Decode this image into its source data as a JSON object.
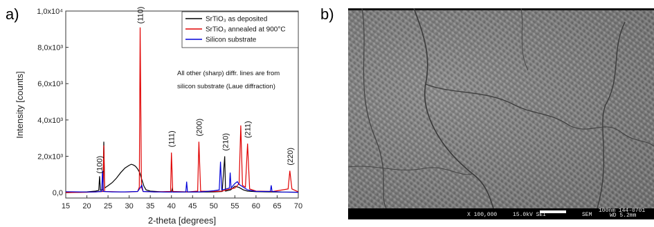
{
  "panels": {
    "a_label": "a)",
    "b_label": "b)"
  },
  "chart_data": {
    "type": "line",
    "xlabel": "2-theta [degrees]",
    "ylabel": "Intensity [counts]",
    "xlim": [
      15,
      70
    ],
    "ylim": [
      -300,
      10000
    ],
    "x_ticks": [
      "15",
      "20",
      "25",
      "30",
      "35",
      "40",
      "45",
      "50",
      "55",
      "60",
      "65",
      "70"
    ],
    "y_ticks": [
      "0,0",
      "2,0x10³",
      "4,0x10³",
      "6,0x10³",
      "8,0x10³",
      "1,0x10⁴"
    ],
    "y_tick_values": [
      0,
      2000,
      4000,
      6000,
      8000,
      10000
    ],
    "legend_position": "top-right",
    "series": [
      {
        "name": "SrTiO₃ as deposited",
        "color": "#000000",
        "points": [
          [
            15,
            0
          ],
          [
            18,
            20
          ],
          [
            20,
            40
          ],
          [
            22,
            80
          ],
          [
            22.8,
            120
          ],
          [
            23.0,
            900
          ],
          [
            23.2,
            120
          ],
          [
            23.8,
            180
          ],
          [
            24.0,
            2800
          ],
          [
            24.2,
            250
          ],
          [
            25,
            380
          ],
          [
            26,
            550
          ],
          [
            27,
            800
          ],
          [
            28,
            1100
          ],
          [
            29,
            1350
          ],
          [
            30,
            1500
          ],
          [
            30.5,
            1560
          ],
          [
            31,
            1520
          ],
          [
            31.5,
            1450
          ],
          [
            32,
            1300
          ],
          [
            32.5,
            1100
          ],
          [
            33,
            700
          ],
          [
            33.5,
            350
          ],
          [
            34,
            150
          ],
          [
            35,
            80
          ],
          [
            38,
            40
          ],
          [
            40,
            30
          ],
          [
            40.2,
            200
          ],
          [
            40.4,
            30
          ],
          [
            43,
            30
          ],
          [
            45,
            30
          ],
          [
            50,
            40
          ],
          [
            52,
            60
          ],
          [
            52.6,
            2000
          ],
          [
            52.8,
            80
          ],
          [
            54,
            150
          ],
          [
            55,
            350
          ],
          [
            56,
            280
          ],
          [
            57,
            150
          ],
          [
            58,
            80
          ],
          [
            60,
            50
          ],
          [
            65,
            30
          ],
          [
            70,
            20
          ]
        ]
      },
      {
        "name": "SrTiO₃ annealed at 900°C",
        "color": "#e00000",
        "points": [
          [
            15,
            0
          ],
          [
            20,
            20
          ],
          [
            22,
            40
          ],
          [
            23.8,
            60
          ],
          [
            24.0,
            2600
          ],
          [
            24.2,
            60
          ],
          [
            28,
            40
          ],
          [
            30,
            40
          ],
          [
            32,
            60
          ],
          [
            32.4,
            300
          ],
          [
            32.6,
            9100
          ],
          [
            32.9,
            300
          ],
          [
            33.3,
            60
          ],
          [
            36,
            40
          ],
          [
            39.8,
            60
          ],
          [
            40.0,
            2200
          ],
          [
            40.3,
            60
          ],
          [
            44,
            40
          ],
          [
            46.2,
            80
          ],
          [
            46.5,
            2800
          ],
          [
            46.9,
            80
          ],
          [
            50,
            60
          ],
          [
            52,
            80
          ],
          [
            53,
            150
          ],
          [
            55,
            250
          ],
          [
            56.0,
            500
          ],
          [
            56.4,
            3700
          ],
          [
            56.8,
            400
          ],
          [
            57.5,
            300
          ],
          [
            58.0,
            2700
          ],
          [
            58.5,
            200
          ],
          [
            60,
            80
          ],
          [
            64,
            60
          ],
          [
            67.6,
            200
          ],
          [
            68,
            1200
          ],
          [
            68.5,
            200
          ],
          [
            70,
            40
          ]
        ]
      },
      {
        "name": "Silicon substrate",
        "color": "#0000d8",
        "points": [
          [
            15,
            50
          ],
          [
            18,
            40
          ],
          [
            20,
            30
          ],
          [
            22,
            40
          ],
          [
            23.5,
            60
          ],
          [
            23.7,
            1200
          ],
          [
            23.9,
            60
          ],
          [
            26,
            40
          ],
          [
            29,
            40
          ],
          [
            32,
            60
          ],
          [
            33.0,
            400
          ],
          [
            33.3,
            60
          ],
          [
            36,
            40
          ],
          [
            40,
            30
          ],
          [
            43.4,
            40
          ],
          [
            43.6,
            600
          ],
          [
            43.8,
            40
          ],
          [
            47,
            40
          ],
          [
            50,
            100
          ],
          [
            51.3,
            150
          ],
          [
            51.6,
            1700
          ],
          [
            51.9,
            150
          ],
          [
            53,
            200
          ],
          [
            53.7,
            250
          ],
          [
            53.9,
            1100
          ],
          [
            54.1,
            250
          ],
          [
            55,
            500
          ],
          [
            55.6,
            600
          ],
          [
            56,
            450
          ],
          [
            57,
            300
          ],
          [
            58,
            150
          ],
          [
            60,
            60
          ],
          [
            63.4,
            60
          ],
          [
            63.6,
            400
          ],
          [
            63.8,
            60
          ],
          [
            66,
            30
          ],
          [
            70,
            20
          ]
        ]
      }
    ],
    "peak_labels": [
      {
        "text": "(100)",
        "x": 22.9,
        "y": 1050
      },
      {
        "text": "(110)",
        "x": 32.6,
        "y": 9300
      },
      {
        "text": "(111)",
        "x": 40.0,
        "y": 2500
      },
      {
        "text": "(200)",
        "x": 46.5,
        "y": 3100
      },
      {
        "text": "(210)",
        "x": 52.7,
        "y": 2300
      },
      {
        "text": "(211)",
        "x": 58.0,
        "y": 3000
      },
      {
        "text": "(220)",
        "x": 68.0,
        "y": 1500
      }
    ],
    "annotation": [
      "All other (sharp) diffr. lines are from",
      "silicon substrate (Laue diffraction)"
    ]
  },
  "sem": {
    "magnification": "X 100,000",
    "voltage": "15.0kV SEI",
    "detector": "SEM",
    "scale": "100nm 144-0701",
    "wd": "WD 5.2mm"
  }
}
